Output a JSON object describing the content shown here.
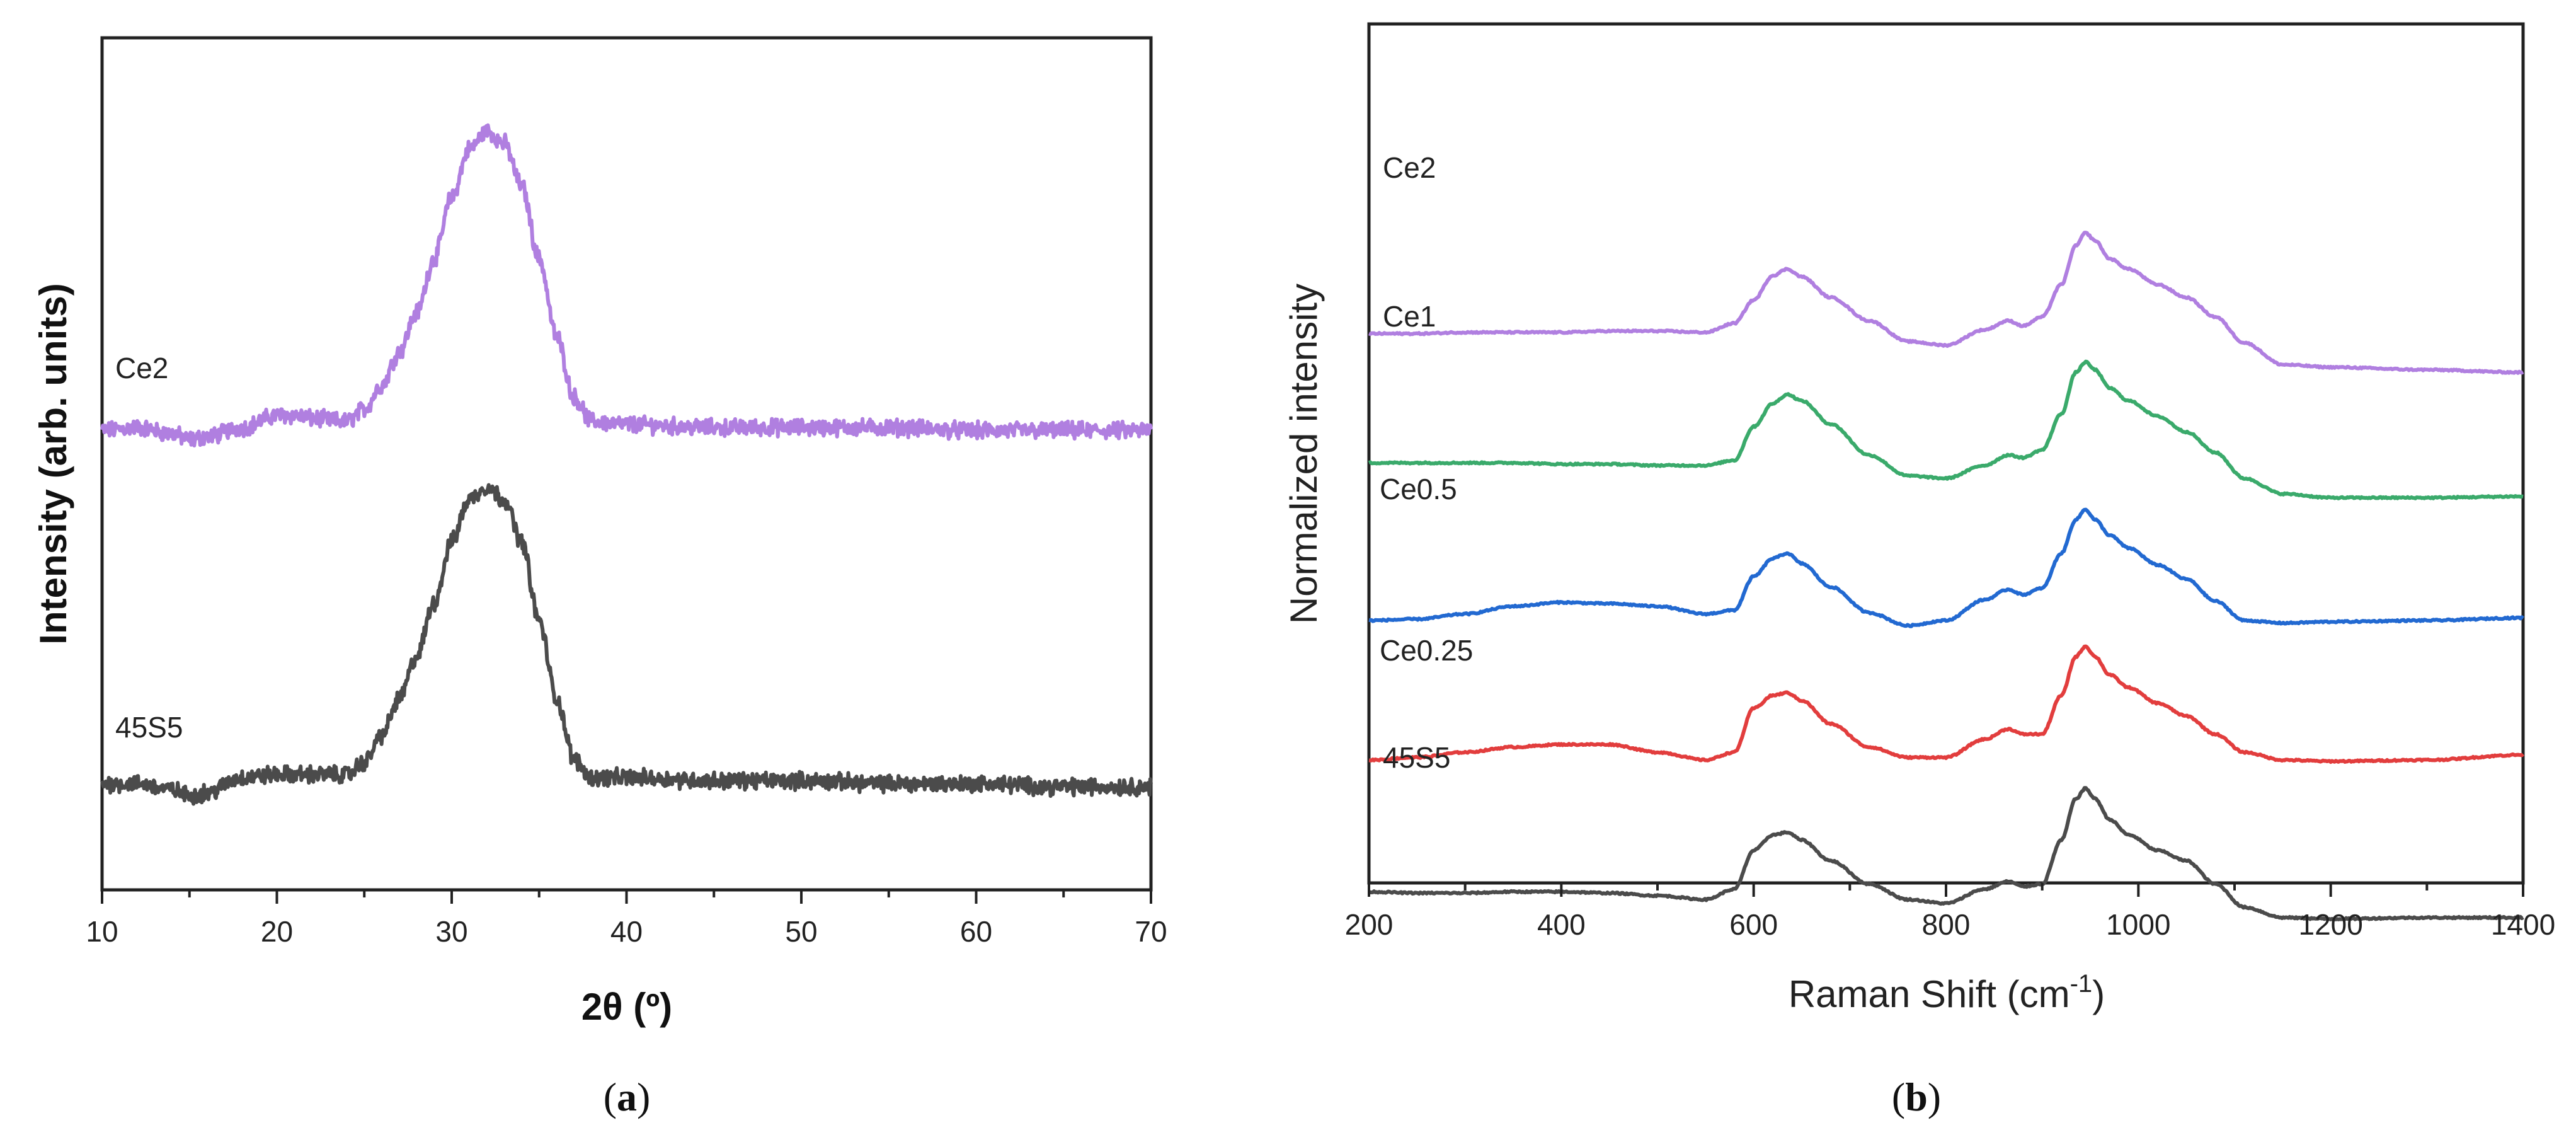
{
  "chart_data": [
    {
      "panel": "a",
      "type": "line",
      "panel_label": "(a)",
      "panel_letter": "a",
      "panel_open": "(",
      "panel_close": ")",
      "xlabel": "2θ (º)",
      "ylabel": "Intensity (arb. units)",
      "xlim": [
        10,
        70
      ],
      "xticks": [
        10,
        20,
        30,
        40,
        50,
        60,
        70
      ],
      "xticks_labels": [
        "10",
        "20",
        "30",
        "40",
        "50",
        "60",
        "70"
      ],
      "yticks": "none",
      "series": [
        {
          "name": "Ce2",
          "color": "#b07fe0",
          "offset": 1.0,
          "noise": 0.022,
          "x": [
            10,
            12,
            14,
            15,
            16,
            18,
            20,
            21,
            22,
            24,
            25,
            26,
            27,
            28,
            29,
            30,
            31,
            32,
            33,
            34,
            35,
            36,
            37,
            38,
            40,
            45,
            50,
            55,
            60,
            65,
            70
          ],
          "y": [
            0.01,
            0.02,
            0.0,
            -0.02,
            -0.01,
            0.02,
            0.06,
            0.06,
            0.05,
            0.04,
            0.08,
            0.16,
            0.27,
            0.4,
            0.58,
            0.78,
            0.94,
            1.0,
            0.96,
            0.82,
            0.58,
            0.32,
            0.12,
            0.04,
            0.03,
            0.02,
            0.02,
            0.02,
            0.01,
            0.01,
            0.01
          ]
        },
        {
          "name": "45S5",
          "color": "#4b4b4b",
          "offset": 0.0,
          "noise": 0.022,
          "x": [
            10,
            12,
            14,
            15,
            16,
            18,
            20,
            21,
            22,
            24,
            25,
            26,
            27,
            28,
            29,
            30,
            31,
            32,
            33,
            34,
            35,
            36,
            37,
            38,
            40,
            45,
            50,
            55,
            60,
            65,
            70
          ],
          "y": [
            0.02,
            0.02,
            0.0,
            -0.02,
            -0.01,
            0.04,
            0.05,
            0.05,
            0.05,
            0.05,
            0.09,
            0.18,
            0.3,
            0.44,
            0.62,
            0.82,
            0.96,
            1.0,
            0.96,
            0.82,
            0.56,
            0.3,
            0.1,
            0.04,
            0.04,
            0.03,
            0.03,
            0.02,
            0.02,
            0.01,
            0.01
          ]
        }
      ]
    },
    {
      "panel": "b",
      "type": "line",
      "panel_label": "(b)",
      "panel_letter": "b",
      "panel_open": "(",
      "panel_close": ")",
      "xlabel": "Raman Shift (cm",
      "xlabel_sup": "-1",
      "xlabel_close": ")",
      "ylabel": "Normalized intensity",
      "xlim": [
        200,
        1400
      ],
      "xticks": [
        200,
        400,
        600,
        800,
        1000,
        1200,
        1400
      ],
      "xticks_labels": [
        "200",
        "400",
        "600",
        "800",
        "1000",
        "1200",
        "1400"
      ],
      "yticks": "none",
      "series": [
        {
          "name": "Ce2",
          "color": "#b07fe0",
          "offset": 4.3,
          "x": [
            200,
            250,
            300,
            350,
            400,
            450,
            500,
            550,
            580,
            600,
            620,
            635,
            650,
            680,
            720,
            760,
            800,
            840,
            865,
            880,
            900,
            920,
            935,
            945,
            955,
            970,
            990,
            1020,
            1050,
            1080,
            1110,
            1150,
            1200,
            1300,
            1400
          ],
          "y": [
            0.42,
            0.42,
            0.43,
            0.43,
            0.43,
            0.44,
            0.44,
            0.43,
            0.5,
            0.68,
            0.87,
            0.92,
            0.86,
            0.7,
            0.52,
            0.36,
            0.33,
            0.45,
            0.52,
            0.48,
            0.55,
            0.8,
            1.1,
            1.2,
            1.14,
            1.0,
            0.92,
            0.8,
            0.7,
            0.55,
            0.35,
            0.18,
            0.16,
            0.14,
            0.12
          ]
        },
        {
          "name": "Ce1",
          "color": "#3aaa6b",
          "offset": 3.3,
          "x": [
            200,
            250,
            300,
            350,
            400,
            450,
            500,
            550,
            580,
            600,
            620,
            635,
            650,
            680,
            720,
            760,
            800,
            840,
            865,
            880,
            900,
            920,
            935,
            945,
            955,
            970,
            990,
            1020,
            1050,
            1080,
            1110,
            1150,
            1200,
            1300,
            1400
          ],
          "y": [
            0.42,
            0.42,
            0.42,
            0.42,
            0.41,
            0.41,
            0.4,
            0.4,
            0.44,
            0.7,
            0.88,
            0.95,
            0.9,
            0.72,
            0.48,
            0.32,
            0.3,
            0.4,
            0.48,
            0.46,
            0.52,
            0.8,
            1.12,
            1.2,
            1.14,
            1.0,
            0.9,
            0.78,
            0.66,
            0.5,
            0.3,
            0.18,
            0.15,
            0.15,
            0.16
          ]
        },
        {
          "name": "Ce0.5",
          "color": "#2269d1",
          "offset": 2.2,
          "x": [
            200,
            250,
            300,
            350,
            400,
            450,
            500,
            550,
            580,
            600,
            620,
            635,
            650,
            680,
            720,
            760,
            800,
            840,
            865,
            880,
            900,
            920,
            935,
            945,
            955,
            970,
            990,
            1020,
            1050,
            1080,
            1110,
            1150,
            1200,
            1300,
            1400
          ],
          "y": [
            0.3,
            0.31,
            0.35,
            0.41,
            0.44,
            0.43,
            0.41,
            0.35,
            0.38,
            0.64,
            0.78,
            0.82,
            0.74,
            0.56,
            0.36,
            0.26,
            0.3,
            0.46,
            0.54,
            0.5,
            0.55,
            0.82,
            1.08,
            1.16,
            1.08,
            0.96,
            0.86,
            0.73,
            0.62,
            0.45,
            0.3,
            0.28,
            0.29,
            0.3,
            0.32
          ]
        },
        {
          "name": "Ce0.25",
          "color": "#e23d3d",
          "offset": 1.1,
          "x": [
            200,
            250,
            300,
            350,
            400,
            450,
            500,
            550,
            580,
            600,
            620,
            635,
            650,
            680,
            720,
            760,
            800,
            840,
            865,
            880,
            900,
            920,
            935,
            945,
            955,
            970,
            990,
            1020,
            1050,
            1080,
            1110,
            1150,
            1200,
            1300,
            1400
          ],
          "y": [
            0.32,
            0.34,
            0.38,
            0.42,
            0.44,
            0.44,
            0.38,
            0.32,
            0.38,
            0.72,
            0.82,
            0.84,
            0.78,
            0.6,
            0.42,
            0.34,
            0.34,
            0.48,
            0.56,
            0.52,
            0.52,
            0.82,
            1.12,
            1.2,
            1.12,
            0.98,
            0.88,
            0.76,
            0.66,
            0.52,
            0.38,
            0.32,
            0.31,
            0.32,
            0.36
          ]
        },
        {
          "name": "45S5",
          "color": "#4b4b4b",
          "offset": 0.0,
          "x": [
            200,
            250,
            300,
            350,
            400,
            450,
            500,
            550,
            580,
            600,
            620,
            635,
            650,
            680,
            720,
            760,
            800,
            840,
            865,
            880,
            900,
            920,
            935,
            945,
            955,
            970,
            990,
            1020,
            1050,
            1080,
            1110,
            1150,
            1200,
            1300,
            1400
          ],
          "y": [
            0.4,
            0.39,
            0.39,
            0.4,
            0.4,
            0.39,
            0.37,
            0.34,
            0.42,
            0.72,
            0.84,
            0.86,
            0.8,
            0.64,
            0.46,
            0.34,
            0.31,
            0.42,
            0.48,
            0.44,
            0.46,
            0.8,
            1.12,
            1.2,
            1.12,
            0.96,
            0.84,
            0.72,
            0.64,
            0.46,
            0.28,
            0.2,
            0.19,
            0.2,
            0.2
          ]
        }
      ]
    }
  ]
}
